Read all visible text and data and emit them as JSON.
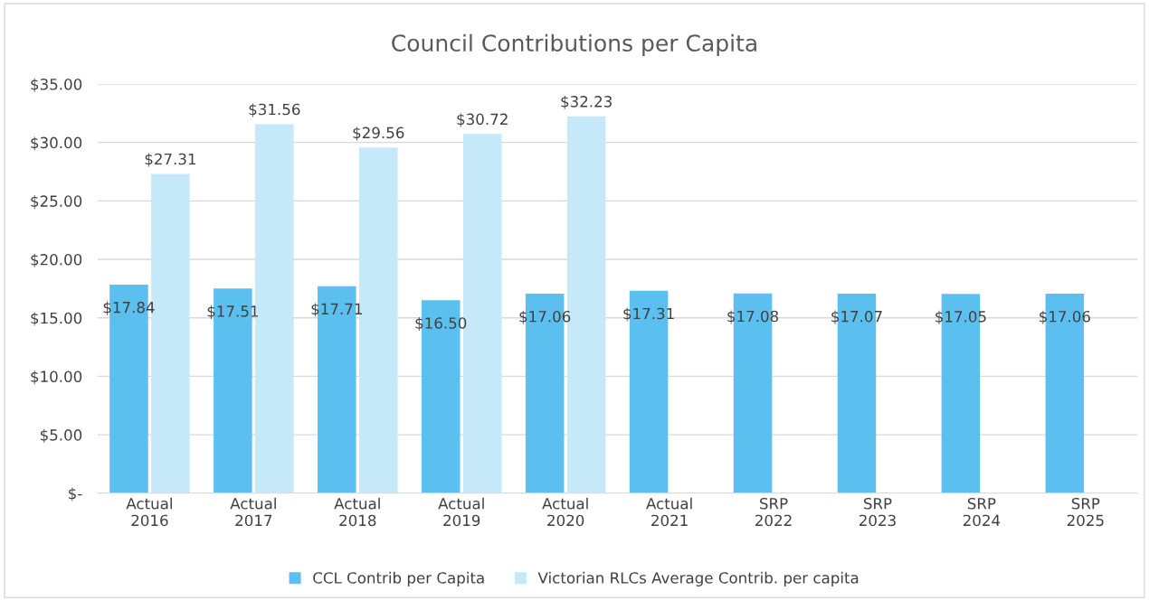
{
  "chart_data": {
    "type": "bar",
    "title": "Council Contributions per Capita",
    "categories": [
      "Actual\n2016",
      "Actual\n2017",
      "Actual\n2018",
      "Actual\n2019",
      "Actual\n2020",
      "Actual\n2021",
      "SRP\n2022",
      "SRP\n2023",
      "SRP\n2024",
      "SRP\n2025"
    ],
    "series": [
      {
        "name": "CCL Contrib per Capita",
        "color": "#5bc0f0",
        "values": [
          17.84,
          17.51,
          17.71,
          16.5,
          17.06,
          17.31,
          17.08,
          17.07,
          17.05,
          17.06
        ],
        "value_labels": [
          "$17.84",
          "$17.51",
          "$17.71",
          "$16.50",
          "$17.06",
          "$17.31",
          "$17.08",
          "$17.07",
          "$17.05",
          "$17.06"
        ]
      },
      {
        "name": "Victorian RLCs Average Contrib. per capita",
        "color": "#c5e9f8",
        "values": [
          27.31,
          31.56,
          29.56,
          30.72,
          32.23,
          null,
          null,
          null,
          null,
          null
        ],
        "value_labels": [
          "$27.31",
          "$31.56",
          "$29.56",
          "$30.72",
          "$32.23",
          null,
          null,
          null,
          null,
          null
        ]
      }
    ],
    "ylim": [
      0,
      35
    ],
    "yticks": [
      {
        "value": 0,
        "label": "$-"
      },
      {
        "value": 5,
        "label": "$5.00"
      },
      {
        "value": 10,
        "label": "$10.00"
      },
      {
        "value": 15,
        "label": "$15.00"
      },
      {
        "value": 20,
        "label": "$20.00"
      },
      {
        "value": 25,
        "label": "$25.00"
      },
      {
        "value": 30,
        "label": "$30.00"
      },
      {
        "value": 35,
        "label": "$35.00"
      }
    ],
    "grid": "y",
    "legend": "bottom"
  }
}
